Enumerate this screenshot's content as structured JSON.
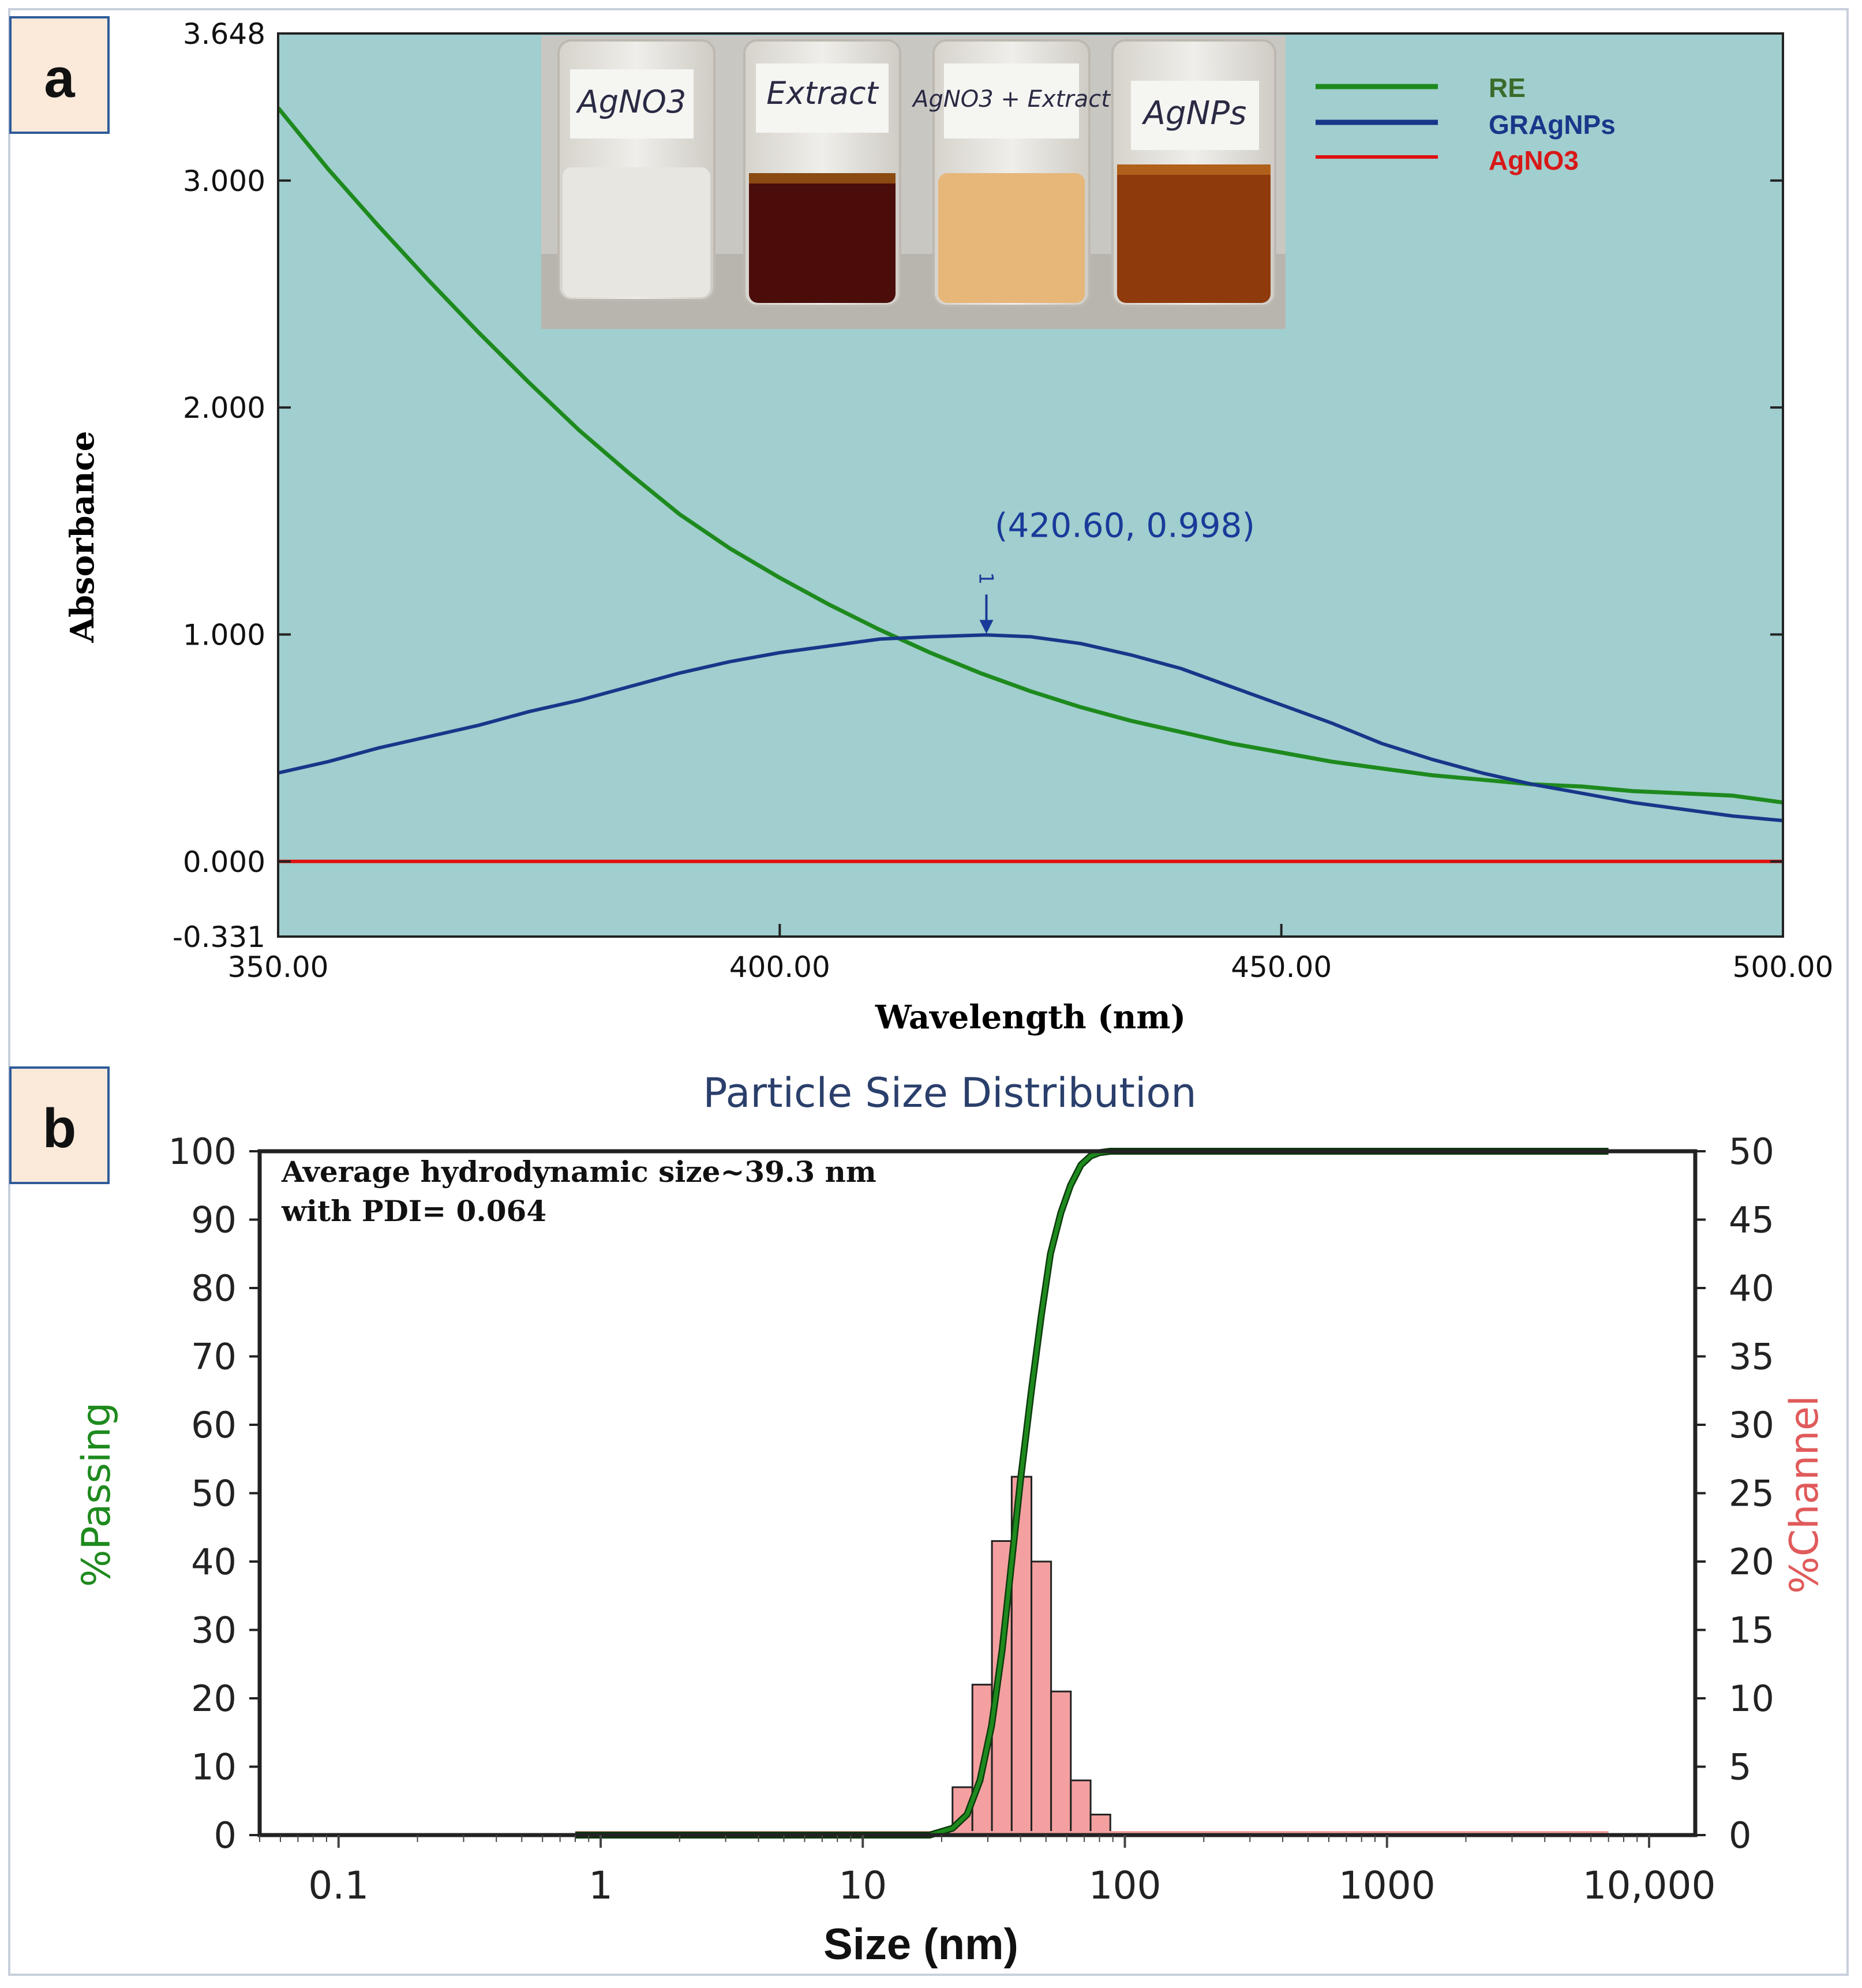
{
  "colors": {
    "plot_bg": "#a1cece",
    "re": "#1e8a1e",
    "gragnps": "#17378a",
    "agno3": "#e01010",
    "passing": "#1e8a1e",
    "channel": "#f4a0a0",
    "title_blue": "#2a3f6b",
    "label_box": "#fbe9d9"
  },
  "chart_data": [
    {
      "panel": "a",
      "type": "line",
      "xlabel": "Wavelength (nm)",
      "ylabel": "Absorbance",
      "xlim": [
        350.0,
        500.0
      ],
      "ylim": [
        -0.331,
        3.648
      ],
      "xticks": [
        "350.00",
        "400.00",
        "450.00",
        "500.00"
      ],
      "yticks": [
        "3.648",
        "3.000",
        "2.000",
        "1.000",
        "0.000",
        "-0.331"
      ],
      "annotation": {
        "text": "(420.60, 0.998)",
        "x": 420.6,
        "y": 0.998,
        "marker_label": "1"
      },
      "inset_labels": [
        "AgNO3",
        "Extract",
        "AgNO3 + Extract",
        "AgNPs"
      ],
      "series": [
        {
          "name": "RE",
          "x": [
            350,
            355,
            360,
            365,
            370,
            375,
            380,
            385,
            390,
            395,
            400,
            405,
            410,
            415,
            420,
            425,
            430,
            435,
            440,
            445,
            450,
            455,
            460,
            465,
            470,
            475,
            480,
            485,
            490,
            495,
            500
          ],
          "values": [
            3.32,
            3.05,
            2.8,
            2.56,
            2.33,
            2.11,
            1.9,
            1.71,
            1.53,
            1.38,
            1.25,
            1.13,
            1.02,
            0.92,
            0.83,
            0.75,
            0.68,
            0.62,
            0.57,
            0.52,
            0.48,
            0.44,
            0.41,
            0.38,
            0.36,
            0.34,
            0.33,
            0.31,
            0.3,
            0.29,
            0.26
          ]
        },
        {
          "name": "GRAgNPs",
          "x": [
            350,
            355,
            360,
            365,
            370,
            375,
            380,
            385,
            390,
            395,
            400,
            405,
            410,
            415,
            420.6,
            425,
            430,
            435,
            440,
            445,
            450,
            455,
            460,
            465,
            470,
            475,
            480,
            485,
            490,
            495,
            500
          ],
          "values": [
            0.39,
            0.44,
            0.5,
            0.55,
            0.6,
            0.66,
            0.71,
            0.77,
            0.83,
            0.88,
            0.92,
            0.95,
            0.98,
            0.99,
            0.998,
            0.99,
            0.96,
            0.91,
            0.85,
            0.77,
            0.69,
            0.61,
            0.52,
            0.45,
            0.39,
            0.34,
            0.3,
            0.26,
            0.23,
            0.2,
            0.18
          ]
        },
        {
          "name": "AgNO3",
          "x": [
            350,
            500
          ],
          "values": [
            0.0,
            0.0
          ]
        }
      ]
    },
    {
      "panel": "b",
      "type": "bar",
      "title": "Particle Size Distribution",
      "xlabel": "Size (nm)",
      "ylabel_left": "%Passing",
      "ylabel_right": "%Channel",
      "xscale": "log",
      "xlim": [
        0.05,
        15000
      ],
      "ylim_left": [
        0,
        100
      ],
      "ylim_right": [
        0,
        50
      ],
      "xticks": [
        {
          "v": 0.1,
          "label": "0.1"
        },
        {
          "v": 1,
          "label": "1"
        },
        {
          "v": 10,
          "label": "10"
        },
        {
          "v": 100,
          "label": "100"
        },
        {
          "v": 1000,
          "label": "1000"
        },
        {
          "v": 10000,
          "label": "10,000"
        }
      ],
      "yticks_left": [
        "0",
        "10",
        "20",
        "30",
        "40",
        "50",
        "60",
        "70",
        "80",
        "90",
        "100"
      ],
      "yticks_right": [
        "0",
        "5",
        "10",
        "15",
        "20",
        "25",
        "30",
        "35",
        "40",
        "45",
        "50"
      ],
      "annotation": [
        "Average hydrodynamic size~39.3 nm",
        "with PDI= 0.064"
      ],
      "bars": {
        "bin_edges": [
          22.0,
          26.2,
          31.1,
          37.0,
          44.0,
          52.3,
          62.2,
          74.0,
          88.0
        ],
        "values": [
          3.5,
          11.0,
          21.5,
          26.2,
          20.0,
          10.5,
          4.0,
          1.5
        ]
      },
      "passing": {
        "x": [
          0.8,
          10,
          18,
          22,
          25,
          28,
          31,
          34,
          37,
          40,
          44,
          48,
          52,
          57,
          62,
          68,
          74,
          80,
          88,
          100,
          1000,
          7000
        ],
        "values": [
          0,
          0,
          0,
          1,
          3,
          8,
          16,
          27,
          40,
          52,
          65,
          76,
          85,
          91,
          95,
          98,
          99.3,
          99.8,
          100,
          100,
          100,
          100
        ]
      }
    }
  ]
}
